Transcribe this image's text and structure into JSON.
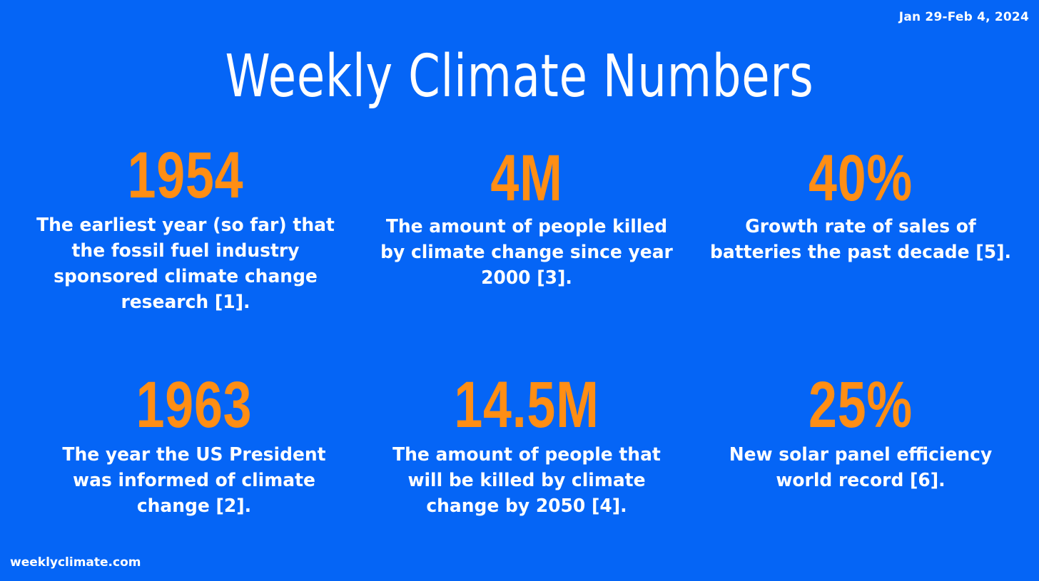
{
  "date_range": "Jan 29-Feb 4, 2024",
  "title": "Weekly Climate Numbers",
  "stats": [
    {
      "value": "1954",
      "description": "The earliest year (so far) that the fossil fuel industry sponsored climate change research [1]."
    },
    {
      "value": "4M",
      "description": "The amount of people killed by climate change since year 2000 [3]."
    },
    {
      "value": "40%",
      "description": "Growth rate of sales of batteries the past decade [5]."
    },
    {
      "value": "1963",
      "description": "The year the US President was informed of climate change [2]."
    },
    {
      "value": "14.5M",
      "description": "The amount of people that will be killed by climate change by 2050 [4]."
    },
    {
      "value": "25%",
      "description": "New solar panel efficiency world record [6]."
    }
  ],
  "footer": "weeklyclimate.com",
  "colors": {
    "background": "#0565f6",
    "accent": "#ff8e14",
    "text": "#ffffff"
  }
}
